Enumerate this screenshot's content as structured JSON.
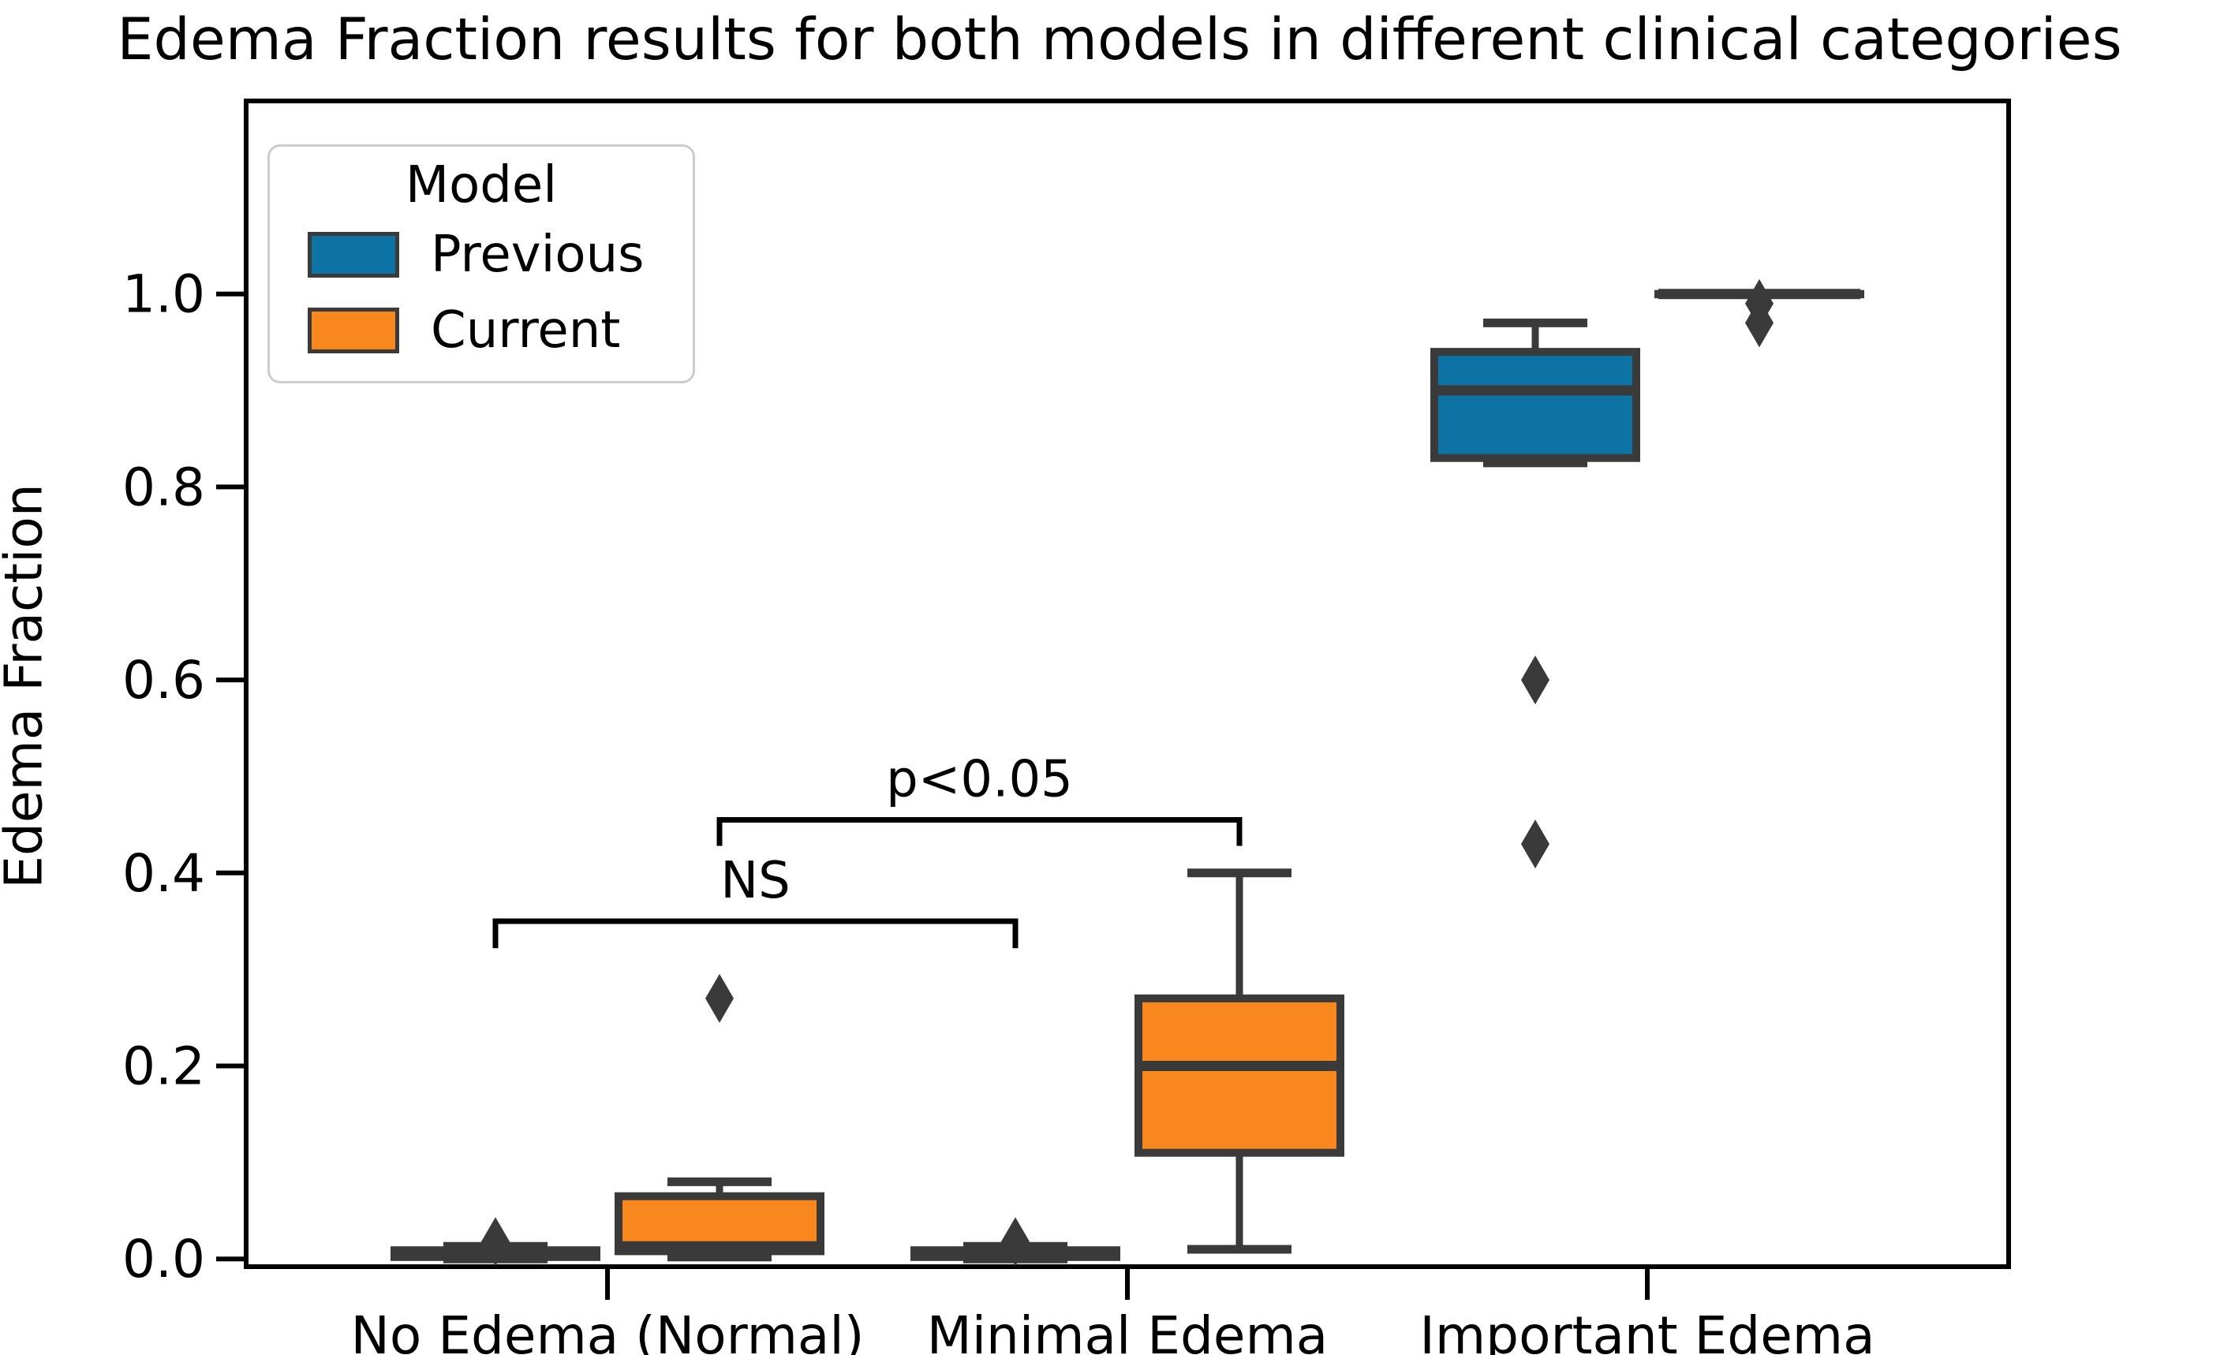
{
  "title": "Edema Fraction results for both models in different clinical categories",
  "axes": {
    "ylabel": "Edema Fraction",
    "ytick_labels": [
      "0.0",
      "0.2",
      "0.4",
      "0.6",
      "0.8",
      "1.0"
    ],
    "ytick_values": [
      0.0,
      0.2,
      0.4,
      0.6,
      0.8,
      1.0
    ],
    "ylim": [
      -0.008,
      1.2
    ]
  },
  "legend": {
    "title": "Model",
    "entries": [
      {
        "label": "Previous",
        "color": "#0d73a4"
      },
      {
        "label": "Current",
        "color": "#f8871d"
      }
    ],
    "position": "upper left"
  },
  "style": {
    "box_edge_color": "#3a3a3a",
    "flier_color": "#3a3a3a",
    "spine_color": "#000000",
    "bracket_color": "#000000",
    "legend_border_color": "#cccccc",
    "background": "#ffffff"
  },
  "chart_data": {
    "type": "boxplot",
    "title": "Edema Fraction results for both models in different clinical categories",
    "xlabel": "",
    "ylabel": "Edema Fraction",
    "categories": [
      "No Edema (Normal)",
      "Minimal Edema",
      "Important Edema"
    ],
    "ylim": [
      -0.008,
      1.2
    ],
    "yticks": [
      0.0,
      0.2,
      0.4,
      0.6,
      0.8,
      1.0
    ],
    "grid": false,
    "legend_position": "upper left",
    "series": [
      {
        "name": "Previous",
        "color": "#0d73a4",
        "boxes": [
          {
            "whislo": 0.0,
            "q1": 0.002,
            "med": 0.005,
            "q3": 0.009,
            "whishi": 0.013,
            "fliers": [
              0.018
            ]
          },
          {
            "whislo": 0.0,
            "q1": 0.002,
            "med": 0.005,
            "q3": 0.009,
            "whishi": 0.013,
            "fliers": [
              0.018
            ]
          },
          {
            "whislo": 0.825,
            "q1": 0.83,
            "med": 0.9,
            "q3": 0.94,
            "whishi": 0.97,
            "fliers": [
              0.6,
              0.43
            ]
          }
        ]
      },
      {
        "name": "Current",
        "color": "#f8871d",
        "boxes": [
          {
            "whislo": 0.002,
            "q1": 0.008,
            "med": 0.013,
            "q3": 0.065,
            "whishi": 0.08,
            "fliers": [
              0.27
            ]
          },
          {
            "whislo": 0.01,
            "q1": 0.11,
            "med": 0.2,
            "q3": 0.27,
            "whishi": 0.4,
            "fliers": []
          },
          {
            "whislo": 1.0,
            "q1": 1.0,
            "med": 1.0,
            "q3": 1.0,
            "whishi": 1.0,
            "fliers": [
              0.99,
              0.97
            ]
          }
        ]
      }
    ],
    "annotations": [
      {
        "label": "NS",
        "series": "Previous",
        "from": 0,
        "to": 1,
        "bar_y": 0.35,
        "tail_y": 0.322
      },
      {
        "label": "p<0.05",
        "series": "Current",
        "from": 0,
        "to": 1,
        "bar_y": 0.455,
        "tail_y": 0.428
      }
    ]
  }
}
